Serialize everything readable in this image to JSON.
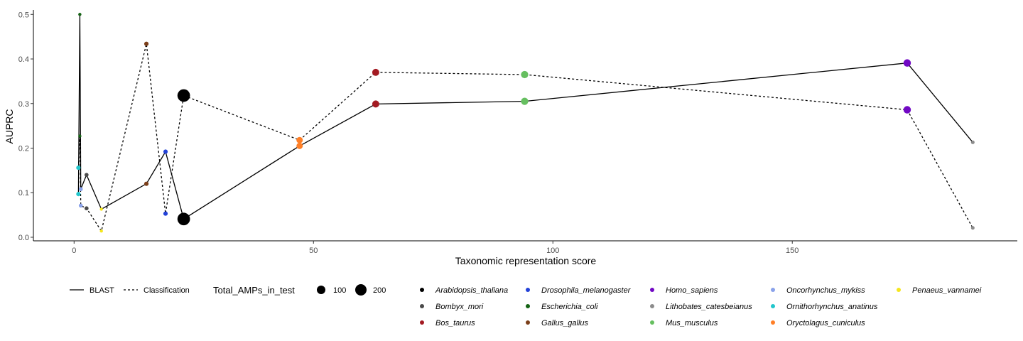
{
  "chart_data": {
    "type": "scatter",
    "xlabel": "Taxonomic representation score",
    "ylabel": "AUPRC",
    "xlim": [
      -8.5,
      197
    ],
    "ylim": [
      -0.008,
      0.51
    ],
    "x_ticks": [
      0,
      50,
      100,
      150
    ],
    "y_ticks": [
      0.0,
      0.1,
      0.2,
      0.3,
      0.4,
      0.5
    ],
    "x_tick_labels": [
      "0",
      "50",
      "100",
      "150"
    ],
    "y_tick_labels": [
      "0.0",
      "0.1",
      "0.2",
      "0.3",
      "0.4",
      "0.5"
    ],
    "grid": false,
    "legend_position": "bottom",
    "linetype_legend": [
      {
        "name": "BLAST",
        "dash": "solid"
      },
      {
        "name": "Classification",
        "dash": "dotted"
      }
    ],
    "size_legend": {
      "title": "Total_AMPs_in_test",
      "entries": [
        {
          "label": "100",
          "value": 100
        },
        {
          "label": "200",
          "value": 200
        }
      ]
    },
    "species": [
      {
        "name": "Arabidopsis_thaliana",
        "color": "#000000"
      },
      {
        "name": "Bombyx_mori",
        "color": "#4a4a4a"
      },
      {
        "name": "Bos_taurus",
        "color": "#a31a22"
      },
      {
        "name": "Drosophila_melanogaster",
        "color": "#2342d8"
      },
      {
        "name": "Escherichia_coli",
        "color": "#146314"
      },
      {
        "name": "Gallus_gallus",
        "color": "#7b3f1a"
      },
      {
        "name": "Homo_sapiens",
        "color": "#7108c4"
      },
      {
        "name": "Lithobates_catesbeianus",
        "color": "#8c8c8c"
      },
      {
        "name": "Mus_musculus",
        "color": "#66bf60"
      },
      {
        "name": "Oncorhynchus_mykiss",
        "color": "#8aa2ea"
      },
      {
        "name": "Ornithorhynchus_anatinus",
        "color": "#22c6cc"
      },
      {
        "name": "Oryctolagus_cuniculus",
        "color": "#ff7f27"
      },
      {
        "name": "Penaeus_vannamei",
        "color": "#f5e61e"
      }
    ],
    "series": [
      {
        "name": "BLAST",
        "dash": "solid",
        "points": [
          {
            "species": "Ornithorhynchus_anatinus",
            "x": 0.9,
            "y": 0.097,
            "size": 20
          },
          {
            "species": "Escherichia_coli",
            "x": 1.2,
            "y": 0.5,
            "size": 5
          },
          {
            "species": "Oncorhynchus_mykiss",
            "x": 1.4,
            "y": 0.108,
            "size": 15
          },
          {
            "species": "Bombyx_mori",
            "x": 2.6,
            "y": 0.14,
            "size": 15
          },
          {
            "species": "Penaeus_vannamei",
            "x": 5.7,
            "y": 0.063,
            "size": 5
          },
          {
            "species": "Gallus_gallus",
            "x": 15.1,
            "y": 0.12,
            "size": 20
          },
          {
            "species": "Drosophila_melanogaster",
            "x": 19.1,
            "y": 0.192,
            "size": 20
          },
          {
            "species": "Arabidopsis_thaliana",
            "x": 22.9,
            "y": 0.041,
            "size": 250
          },
          {
            "species": "Oryctolagus_cuniculus",
            "x": 47.1,
            "y": 0.205,
            "size": 55
          },
          {
            "species": "Bos_taurus",
            "x": 63.0,
            "y": 0.299,
            "size": 70
          },
          {
            "species": "Mus_musculus",
            "x": 94.1,
            "y": 0.305,
            "size": 75
          },
          {
            "species": "Homo_sapiens",
            "x": 174.0,
            "y": 0.391,
            "size": 80
          },
          {
            "species": "Lithobates_catesbeianus",
            "x": 187.7,
            "y": 0.213,
            "size": 10
          }
        ]
      },
      {
        "name": "Classification",
        "dash": "dotted",
        "points": [
          {
            "species": "Ornithorhynchus_anatinus",
            "x": 0.9,
            "y": 0.156,
            "size": 20
          },
          {
            "species": "Escherichia_coli",
            "x": 1.2,
            "y": 0.227,
            "size": 5
          },
          {
            "species": "Oncorhynchus_mykiss",
            "x": 1.4,
            "y": 0.071,
            "size": 15
          },
          {
            "species": "Bombyx_mori",
            "x": 2.6,
            "y": 0.065,
            "size": 15
          },
          {
            "species": "Penaeus_vannamei",
            "x": 5.7,
            "y": 0.014,
            "size": 5
          },
          {
            "species": "Gallus_gallus",
            "x": 15.1,
            "y": 0.434,
            "size": 20
          },
          {
            "species": "Drosophila_melanogaster",
            "x": 19.1,
            "y": 0.053,
            "size": 20
          },
          {
            "species": "Arabidopsis_thaliana",
            "x": 22.9,
            "y": 0.318,
            "size": 250
          },
          {
            "species": "Oryctolagus_cuniculus",
            "x": 47.1,
            "y": 0.218,
            "size": 55
          },
          {
            "species": "Bos_taurus",
            "x": 63.0,
            "y": 0.37,
            "size": 70
          },
          {
            "species": "Mus_musculus",
            "x": 94.1,
            "y": 0.365,
            "size": 75
          },
          {
            "species": "Homo_sapiens",
            "x": 174.0,
            "y": 0.286,
            "size": 80
          },
          {
            "species": "Lithobates_catesbeianus",
            "x": 187.7,
            "y": 0.021,
            "size": 10
          }
        ]
      }
    ]
  }
}
